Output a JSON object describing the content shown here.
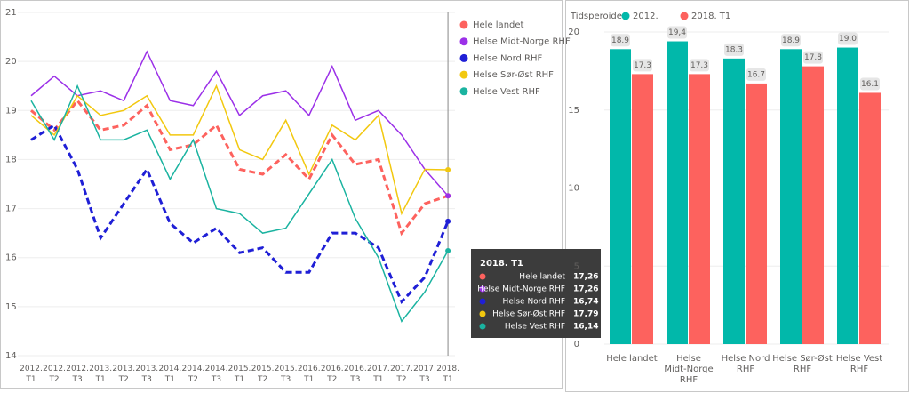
{
  "chart_data": [
    {
      "type": "line",
      "categories": [
        "2012. T1",
        "2012. T2",
        "2012. T3",
        "2013. T1",
        "2013. T2",
        "2013. T3",
        "2014. T1",
        "2014. T2",
        "2014. T3",
        "2015. T1",
        "2015. T2",
        "2015. T3",
        "2016. T1",
        "2016. T2",
        "2016. T3",
        "2017. T1",
        "2017. T2",
        "2017. T3",
        "2018. T1"
      ],
      "series": [
        {
          "name": "Hele landet",
          "color": "#fd625e",
          "line_style": "dashed",
          "tooltip_label": "17,26",
          "values": [
            19.0,
            18.6,
            19.2,
            18.6,
            18.7,
            19.1,
            18.2,
            18.3,
            18.7,
            17.8,
            17.7,
            18.1,
            17.6,
            18.5,
            17.9,
            18.0,
            16.5,
            17.1,
            17.26
          ]
        },
        {
          "name": "Helse Midt-Norge RHF",
          "color": "#9b30e8",
          "line_style": "solid",
          "tooltip_label": "17,26",
          "values": [
            19.3,
            19.7,
            19.3,
            19.4,
            19.2,
            20.2,
            19.2,
            19.1,
            19.8,
            18.9,
            19.3,
            19.4,
            18.9,
            19.9,
            18.8,
            19.0,
            18.5,
            17.8,
            17.26
          ]
        },
        {
          "name": "Helse Nord RHF",
          "color": "#1f1fd6",
          "line_style": "dashed",
          "tooltip_label": "16,74",
          "values": [
            18.4,
            18.7,
            17.8,
            16.4,
            17.1,
            17.8,
            16.7,
            16.3,
            16.6,
            16.1,
            16.2,
            15.7,
            15.7,
            16.5,
            16.5,
            16.2,
            15.1,
            15.6,
            16.74
          ]
        },
        {
          "name": "Helse Sør-Øst RHF",
          "color": "#f2c80f",
          "line_style": "solid",
          "tooltip_label": "17,79",
          "values": [
            18.9,
            18.5,
            19.3,
            18.9,
            19.0,
            19.3,
            18.5,
            18.5,
            19.5,
            18.2,
            18.0,
            18.8,
            17.7,
            18.7,
            18.4,
            18.9,
            16.9,
            17.8,
            17.79
          ]
        },
        {
          "name": "Helse Vest RHF",
          "color": "#1ab3a0",
          "line_style": "solid",
          "tooltip_label": "16,14",
          "values": [
            19.2,
            18.4,
            19.5,
            18.4,
            18.4,
            18.6,
            17.6,
            18.4,
            17.0,
            16.9,
            16.5,
            16.6,
            17.3,
            18.0,
            16.8,
            16.0,
            14.7,
            15.3,
            16.14
          ]
        }
      ],
      "ylim": [
        14,
        21
      ],
      "yticks": [
        14,
        15,
        16,
        17,
        18,
        19,
        20,
        21
      ],
      "grid": true,
      "legend": "top-right"
    },
    {
      "type": "bar",
      "legend_title": "Tidsperoide",
      "categories": [
        "Hele landet",
        "Helse Midt-Norge RHF",
        "Helse Nord RHF",
        "Helse Sør-Øst RHF",
        "Helse Vest RHF"
      ],
      "series": [
        {
          "name": "2012.",
          "color": "#01b8aa",
          "values": [
            18.9,
            19.4,
            18.3,
            18.9,
            19.0
          ],
          "value_labels": [
            "18.9",
            "19,4",
            "18.3",
            "18.9",
            "19.0"
          ]
        },
        {
          "name": "2018. T1",
          "color": "#fd625e",
          "values": [
            17.3,
            17.3,
            16.7,
            17.8,
            16.1
          ],
          "value_labels": [
            "17.3",
            "17.3",
            "16.7",
            "17.8",
            "16.1"
          ]
        }
      ],
      "ylim": [
        0,
        20
      ],
      "yticks": [
        0,
        5,
        10,
        15,
        20
      ],
      "grid": true,
      "legend": "top-left"
    }
  ]
}
